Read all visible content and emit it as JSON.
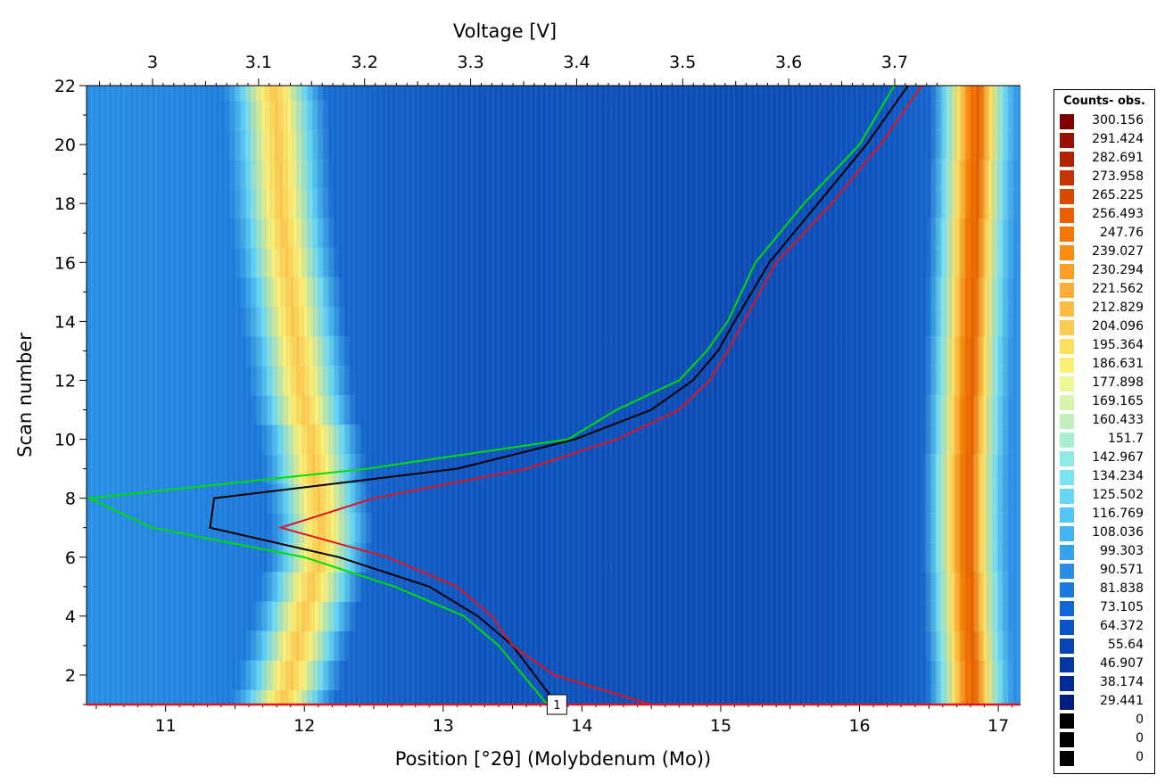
{
  "chart_data": {
    "type": "heatmap",
    "title": "",
    "xlabel": "Position [°2θ] (Molybdenum (Mo))",
    "x2label": "Voltage [V]",
    "ylabel": "Scan number",
    "xlim": [
      10.43,
      17.16
    ],
    "ylim": [
      1,
      22
    ],
    "x_ticks": [
      "11",
      "12",
      "13",
      "14",
      "15",
      "16",
      "17"
    ],
    "x2_ticks": [
      "3",
      "3.1",
      "3.2",
      "3.3",
      "3.4",
      "3.5",
      "3.6",
      "3.7"
    ],
    "y_ticks": [
      "2",
      "4",
      "6",
      "8",
      "10",
      "12",
      "14",
      "16",
      "18",
      "20",
      "22"
    ],
    "peaks": [
      {
        "name": "peak-left",
        "positions_2theta": [
          11.85,
          11.9,
          11.95,
          12.0,
          12.05,
          12.1,
          12.12,
          12.1,
          12.07,
          12.05,
          12.0,
          11.97,
          11.95,
          11.92,
          11.9,
          11.87,
          11.85,
          11.83,
          11.82,
          11.81,
          11.8,
          11.78
        ]
      },
      {
        "name": "peak-right",
        "positions_2theta": [
          16.8,
          16.8,
          16.79,
          16.78,
          16.78,
          16.77,
          16.77,
          16.77,
          16.77,
          16.78,
          16.78,
          16.79,
          16.79,
          16.8,
          16.8,
          16.81,
          16.81,
          16.82,
          16.82,
          16.83,
          16.83,
          16.83
        ]
      }
    ],
    "series": [
      {
        "color": "#00dd00",
        "points": [
          [
            13.75,
            1
          ],
          [
            13.4,
            3
          ],
          [
            13.15,
            4
          ],
          [
            12.65,
            5
          ],
          [
            12.0,
            6
          ],
          [
            10.9,
            7
          ],
          [
            10.45,
            8
          ],
          [
            12.45,
            9
          ],
          [
            13.9,
            10
          ],
          [
            14.25,
            11
          ],
          [
            14.7,
            12
          ],
          [
            14.9,
            13
          ],
          [
            15.05,
            14
          ],
          [
            15.25,
            16
          ],
          [
            15.6,
            18
          ],
          [
            16.0,
            20
          ],
          [
            16.25,
            22
          ]
        ]
      },
      {
        "color": "#000000",
        "points": [
          [
            13.82,
            1
          ],
          [
            13.5,
            3
          ],
          [
            13.25,
            4
          ],
          [
            12.9,
            5
          ],
          [
            12.25,
            6
          ],
          [
            11.32,
            7
          ],
          [
            11.35,
            8
          ],
          [
            13.1,
            9
          ],
          [
            13.95,
            10
          ],
          [
            14.5,
            11
          ],
          [
            14.8,
            12
          ],
          [
            14.98,
            13
          ],
          [
            15.1,
            14
          ],
          [
            15.35,
            16
          ],
          [
            15.7,
            18
          ],
          [
            16.05,
            20
          ],
          [
            16.35,
            22
          ]
        ]
      },
      {
        "color": "#e0141e",
        "points": [
          [
            14.5,
            1
          ],
          [
            13.8,
            2
          ],
          [
            13.5,
            3
          ],
          [
            13.35,
            4
          ],
          [
            13.1,
            5
          ],
          [
            12.6,
            6
          ],
          [
            11.83,
            7
          ],
          [
            12.5,
            8
          ],
          [
            13.6,
            9
          ],
          [
            14.25,
            10
          ],
          [
            14.7,
            11
          ],
          [
            14.92,
            12
          ],
          [
            15.05,
            13
          ],
          [
            15.4,
            16
          ],
          [
            15.8,
            18
          ],
          [
            16.15,
            20
          ],
          [
            16.45,
            22
          ]
        ]
      }
    ],
    "marker": {
      "label": "1",
      "x": 13.82,
      "y": 1
    },
    "legend": {
      "title": "Counts- obs.",
      "position": "right",
      "entries": [
        {
          "label": "300.156",
          "color": "#7f0000"
        },
        {
          "label": "291.424",
          "color": "#981100"
        },
        {
          "label": "282.691",
          "color": "#b02200"
        },
        {
          "label": "273.958",
          "color": "#c53400"
        },
        {
          "label": "265.225",
          "color": "#d84a00"
        },
        {
          "label": "256.493",
          "color": "#e86000"
        },
        {
          "label": "247.76",
          "color": "#f47800"
        },
        {
          "label": "239.027",
          "color": "#fa8c10"
        },
        {
          "label": "230.294",
          "color": "#fb9e28"
        },
        {
          "label": "221.562",
          "color": "#fcae38"
        },
        {
          "label": "212.829",
          "color": "#fdbd44"
        },
        {
          "label": "204.096",
          "color": "#fdcc50"
        },
        {
          "label": "195.364",
          "color": "#fde060"
        },
        {
          "label": "186.631",
          "color": "#faf078"
        },
        {
          "label": "177.898",
          "color": "#eef898"
        },
        {
          "label": "169.165",
          "color": "#d8f4ac"
        },
        {
          "label": "160.433",
          "color": "#c2f0bc"
        },
        {
          "label": "151.7",
          "color": "#a8eed0"
        },
        {
          "label": "142.967",
          "color": "#90eae4"
        },
        {
          "label": "134.234",
          "color": "#7ae2f0"
        },
        {
          "label": "125.502",
          "color": "#66d6f4"
        },
        {
          "label": "116.769",
          "color": "#54c6f4"
        },
        {
          "label": "108.036",
          "color": "#44b4f0"
        },
        {
          "label": "99.303",
          "color": "#36a2ec"
        },
        {
          "label": "90.571",
          "color": "#288ee6"
        },
        {
          "label": "81.838",
          "color": "#1c7ade"
        },
        {
          "label": "73.105",
          "color": "#1266d4"
        },
        {
          "label": "64.372",
          "color": "#0a54c6"
        },
        {
          "label": "55.64",
          "color": "#0644b6"
        },
        {
          "label": "46.907",
          "color": "#0436a4"
        },
        {
          "label": "38.174",
          "color": "#022a92"
        },
        {
          "label": "29.441",
          "color": "#001e80"
        },
        {
          "label": "0",
          "color": "#000000"
        },
        {
          "label": "0",
          "color": "#000000"
        },
        {
          "label": "0",
          "color": "#000000"
        }
      ]
    }
  }
}
